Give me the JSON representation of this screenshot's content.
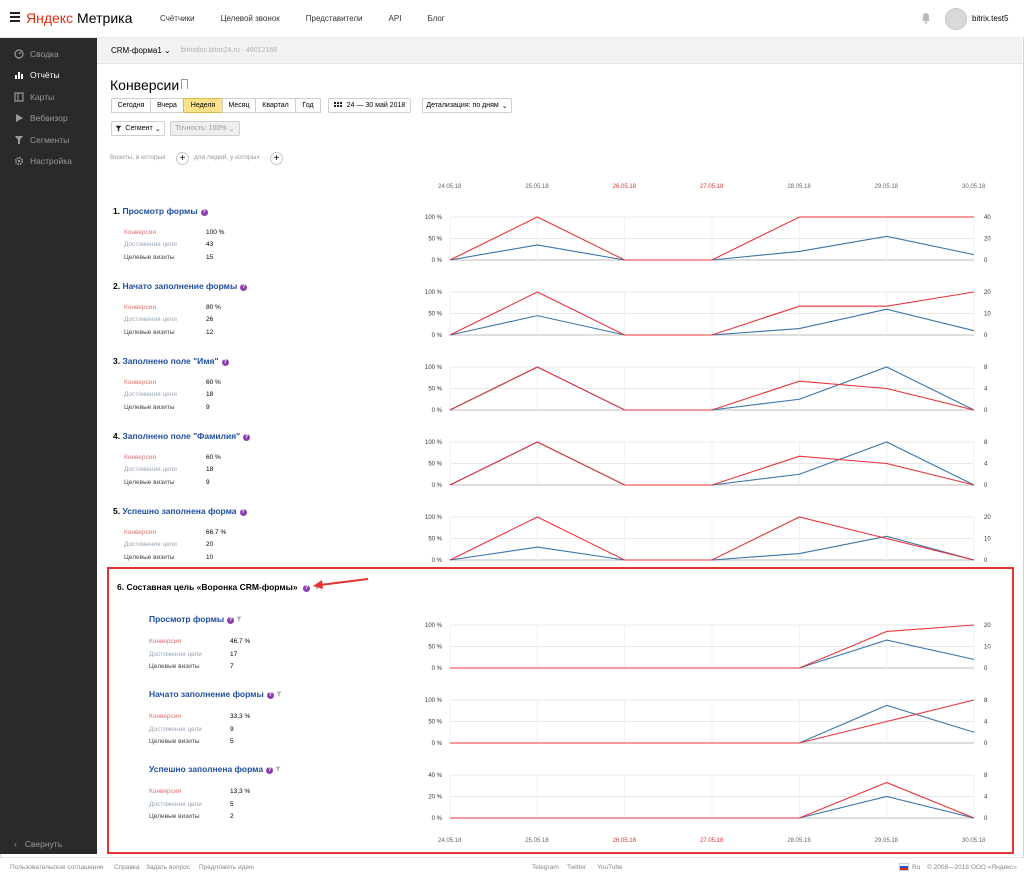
{
  "header": {
    "logo_brand": "Яндекс",
    "logo_product": "Метрика",
    "nav": [
      "Счётчики",
      "Целевой звонок",
      "Представители",
      "API",
      "Блог"
    ],
    "username": "bitrix.test5"
  },
  "sidebar": {
    "items": [
      {
        "label": "Сводка",
        "icon": "dashboard-icon",
        "active": false
      },
      {
        "label": "Отчёты",
        "icon": "bar-chart-icon",
        "active": true
      },
      {
        "label": "Карты",
        "icon": "map-icon",
        "active": false
      },
      {
        "label": "Вебвизор",
        "icon": "play-icon",
        "active": false
      },
      {
        "label": "Сегменты",
        "icon": "filter-icon",
        "active": false
      },
      {
        "label": "Настройка",
        "icon": "gear-icon",
        "active": false
      }
    ],
    "collapse_label": "Свернуть"
  },
  "counter": {
    "name": "CRM-форма1",
    "meta": "bitrixdoc.bitrix24.ru · 49012166"
  },
  "page": {
    "title": "Конверсии",
    "periods": [
      "Сегодня",
      "Вчера",
      "Неделя",
      "Месяц",
      "Квартал",
      "Год"
    ],
    "active_period": "Неделя",
    "date_range": "24 — 30 май 2018",
    "detail": "Детализация: по дням",
    "segment": "Сегмент",
    "accuracy": "Точность: 100%",
    "visits_prefix": "Визиты, в которых",
    "visits_people": "для людей, у которых"
  },
  "dates": [
    "24.05.18",
    "25.05.18",
    "26.05.18",
    "27.05.18",
    "28.05.18",
    "29.05.18",
    "30.05.18"
  ],
  "weekend_dates": [
    false,
    false,
    true,
    true,
    false,
    false,
    false
  ],
  "metric_labels": {
    "conv": "Конверсия",
    "ach": "Достижения цели",
    "vis": "Целевые визиты"
  },
  "colors": {
    "conversion": "#e8343a",
    "visits": "#3b74a8",
    "link": "#1f4fa0",
    "highlight": "#e53333"
  },
  "goals": [
    {
      "num": "1.",
      "title": "Просмотр формы",
      "conv": "100 %",
      "ach": "43",
      "vis": "15",
      "pct_ticks": [
        "100 %",
        "50 %",
        "0 %"
      ],
      "count_ticks": [
        "40",
        "20",
        "0"
      ],
      "conv_series": [
        0,
        100,
        0,
        0,
        100,
        100,
        100
      ],
      "count_max": 40,
      "visits_series": [
        0,
        14,
        0,
        0,
        8,
        22,
        5
      ]
    },
    {
      "num": "2.",
      "title": "Начато заполнение формы",
      "conv": "80 %",
      "ach": "26",
      "vis": "12",
      "pct_ticks": [
        "100 %",
        "50 %",
        "0 %"
      ],
      "count_ticks": [
        "20",
        "10",
        "0"
      ],
      "conv_series": [
        0,
        100,
        0,
        0,
        67,
        67,
        100
      ],
      "count_max": 20,
      "visits_series": [
        0,
        9,
        0,
        0,
        3,
        12,
        2
      ]
    },
    {
      "num": "3.",
      "title": "Заполнено поле \"Имя\"",
      "conv": "60 %",
      "ach": "18",
      "vis": "9",
      "pct_ticks": [
        "100 %",
        "50 %",
        "0 %"
      ],
      "count_ticks": [
        "8",
        "4",
        "0"
      ],
      "conv_series": [
        0,
        100,
        0,
        0,
        67,
        50,
        0
      ],
      "count_max": 8,
      "visits_series": [
        0,
        8,
        0,
        0,
        2,
        8,
        0
      ]
    },
    {
      "num": "4.",
      "title": "Заполнено поле \"Фамилия\"",
      "conv": "60 %",
      "ach": "18",
      "vis": "9",
      "pct_ticks": [
        "100 %",
        "50 %",
        "0 %"
      ],
      "count_ticks": [
        "8",
        "4",
        "0"
      ],
      "conv_series": [
        0,
        100,
        0,
        0,
        67,
        50,
        0
      ],
      "count_max": 8,
      "visits_series": [
        0,
        8,
        0,
        0,
        2,
        8,
        0
      ]
    },
    {
      "num": "5.",
      "title": "Успешно заполнена форма",
      "conv": "66.7 %",
      "ach": "20",
      "vis": "10",
      "pct_ticks": [
        "100 %",
        "50 %",
        "0 %"
      ],
      "count_ticks": [
        "20",
        "10",
        "0"
      ],
      "conv_series": [
        0,
        100,
        0,
        0,
        100,
        50,
        0
      ],
      "count_max": 20,
      "visits_series": [
        0,
        6,
        0,
        0,
        3,
        11,
        0
      ]
    }
  ],
  "composite": {
    "num": "6.",
    "title": "Составная цель «Воронка CRM-формы»",
    "steps": [
      {
        "title": "Просмотр формы",
        "conv": "46,7 %",
        "ach": "17",
        "vis": "7",
        "pct_ticks": [
          "100 %",
          "50 %",
          "0 %"
        ],
        "count_ticks": [
          "20",
          "10",
          "0"
        ],
        "pct_max": 100,
        "conv_series": [
          0,
          0,
          0,
          0,
          0,
          85,
          100
        ],
        "count_max": 20,
        "visits_series": [
          0,
          0,
          0,
          0,
          0,
          13,
          4
        ]
      },
      {
        "title": "Начато заполнение формы",
        "conv": "33,3 %",
        "ach": "9",
        "vis": "5",
        "pct_ticks": [
          "100 %",
          "50 %",
          "0 %"
        ],
        "count_ticks": [
          "8",
          "4",
          "0"
        ],
        "pct_max": 100,
        "conv_series": [
          0,
          0,
          0,
          0,
          0,
          50,
          100
        ],
        "count_max": 8,
        "visits_series": [
          0,
          0,
          0,
          0,
          0,
          7,
          2
        ]
      },
      {
        "title": "Успешно заполнена форма",
        "conv": "13,3 %",
        "ach": "5",
        "vis": "2",
        "pct_ticks": [
          "40 %",
          "20 %",
          "0 %"
        ],
        "count_ticks": [
          "8",
          "4",
          "0"
        ],
        "pct_max": 40,
        "conv_series": [
          0,
          0,
          0,
          0,
          0,
          33,
          0
        ],
        "count_max": 8,
        "visits_series": [
          0,
          0,
          0,
          0,
          0,
          4,
          0
        ]
      }
    ]
  },
  "footer": {
    "left": [
      "Пользовательское соглашение",
      "Справка",
      "Задать вопрос",
      "Предложить идею"
    ],
    "center": [
      "Telegram",
      "Twitter",
      "YouTube"
    ],
    "lang": "Ru",
    "copyright": "© 2008—2018 ООО «Яндекс»"
  }
}
